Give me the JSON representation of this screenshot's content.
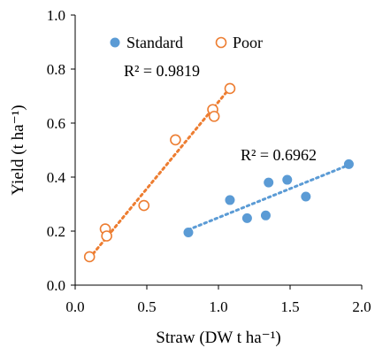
{
  "chart_data": {
    "type": "scatter",
    "xlabel": "Straw (DW t ha⁻¹)",
    "ylabel": "Yield (t ha⁻¹)",
    "xlim": [
      0,
      2
    ],
    "ylim": [
      0,
      1
    ],
    "x_ticks": [
      "0.0",
      "0.5",
      "1.0",
      "1.5",
      "2.0"
    ],
    "y_ticks": [
      "0.0",
      "0.2",
      "0.4",
      "0.6",
      "0.8",
      "1.0"
    ],
    "x_tick_values": [
      0,
      0.5,
      1,
      1.5,
      2
    ],
    "y_tick_values": [
      0,
      0.2,
      0.4,
      0.6,
      0.8,
      1
    ],
    "grid": false,
    "legend_position": "top-left",
    "series": [
      {
        "name": "Standard",
        "color": "#5b9bd5",
        "marker": "filled-circle",
        "points": [
          {
            "x": 0.79,
            "y": 0.195
          },
          {
            "x": 1.08,
            "y": 0.315
          },
          {
            "x": 1.2,
            "y": 0.248
          },
          {
            "x": 1.33,
            "y": 0.258
          },
          {
            "x": 1.35,
            "y": 0.38
          },
          {
            "x": 1.48,
            "y": 0.39
          },
          {
            "x": 1.61,
            "y": 0.328
          },
          {
            "x": 1.91,
            "y": 0.448
          }
        ],
        "trendline": {
          "x": [
            0.79,
            1.91
          ],
          "y": [
            0.205,
            0.445
          ]
        },
        "r2_label": "R² = 0.6962"
      },
      {
        "name": "Poor",
        "color": "#ed7d31",
        "marker": "open-circle",
        "points": [
          {
            "x": 0.1,
            "y": 0.105
          },
          {
            "x": 0.21,
            "y": 0.208
          },
          {
            "x": 0.22,
            "y": 0.182
          },
          {
            "x": 0.48,
            "y": 0.295
          },
          {
            "x": 0.7,
            "y": 0.538
          },
          {
            "x": 0.96,
            "y": 0.65
          },
          {
            "x": 0.97,
            "y": 0.625
          },
          {
            "x": 1.08,
            "y": 0.728
          }
        ],
        "trendline": {
          "x": [
            0.1,
            1.08
          ],
          "y": [
            0.1,
            0.73
          ]
        },
        "r2_label": "R² = 0.9819"
      }
    ]
  }
}
